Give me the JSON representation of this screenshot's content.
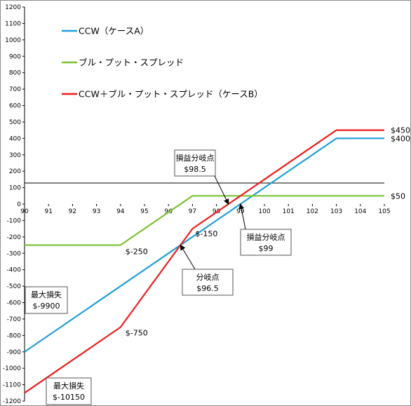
{
  "chart_data": {
    "type": "line",
    "x": [
      90,
      94,
      96.5,
      97,
      99,
      103,
      105
    ],
    "xlim": [
      90,
      105
    ],
    "ylim": [
      -1200,
      1200
    ],
    "x_ticks": [
      "90",
      "91",
      "92",
      "93",
      "94",
      "95",
      "96",
      "97",
      "98",
      "99",
      "100",
      "101",
      "102",
      "103",
      "104",
      "105"
    ],
    "y_ticks": [
      "1200",
      "1100",
      "1000",
      "900",
      "800",
      "700",
      "600",
      "500",
      "400",
      "300",
      "200",
      "100",
      "0",
      "-100",
      "-200",
      "-300",
      "-400",
      "-500",
      "-600",
      "-700",
      "-800",
      "-900",
      "-1000",
      "-1100",
      "-1200"
    ],
    "grid": false,
    "legend_position": "top-left",
    "series": [
      {
        "name": "CCW（ケースA）",
        "color": "#1f9ed8",
        "points": [
          [
            90,
            -900
          ],
          [
            103,
            400
          ],
          [
            105,
            400
          ]
        ]
      },
      {
        "name": "ブル・プット・スプレッド",
        "color": "#7cc131",
        "points": [
          [
            90,
            -250
          ],
          [
            94,
            -250
          ],
          [
            97,
            50
          ],
          [
            105,
            50
          ]
        ]
      },
      {
        "name": "CCW＋ブル・プット・スプレッド（ケースB）",
        "color": "#ee1c1c",
        "points": [
          [
            90,
            -1150
          ],
          [
            94,
            -750
          ],
          [
            97,
            -150
          ],
          [
            103,
            450
          ],
          [
            105,
            450
          ]
        ]
      }
    ],
    "point_labels": [
      {
        "text": "$450",
        "x": 105,
        "y": 450
      },
      {
        "text": "$400",
        "x": 105,
        "y": 400
      },
      {
        "text": "$50",
        "x": 105,
        "y": 50
      },
      {
        "text": "$-150",
        "x": 97,
        "y": -150
      },
      {
        "text": "$-250",
        "x": 94,
        "y": -250
      },
      {
        "text": "$-750",
        "x": 94,
        "y": -750
      }
    ],
    "annotations": [
      {
        "lines": [
          "損益分岐点",
          "$98.5"
        ],
        "x": 98.5,
        "y": 0
      },
      {
        "lines": [
          "損益分岐点",
          "$99"
        ],
        "x": 99,
        "y": 0
      },
      {
        "lines": [
          "分岐点",
          "$96.5"
        ],
        "x": 96.5,
        "y": -250
      },
      {
        "lines": [
          "最大損失",
          "$-9900"
        ],
        "x": 90,
        "y": -900
      },
      {
        "lines": [
          "最大損失",
          "$-10150"
        ],
        "x": 90,
        "y": -1150
      }
    ]
  }
}
